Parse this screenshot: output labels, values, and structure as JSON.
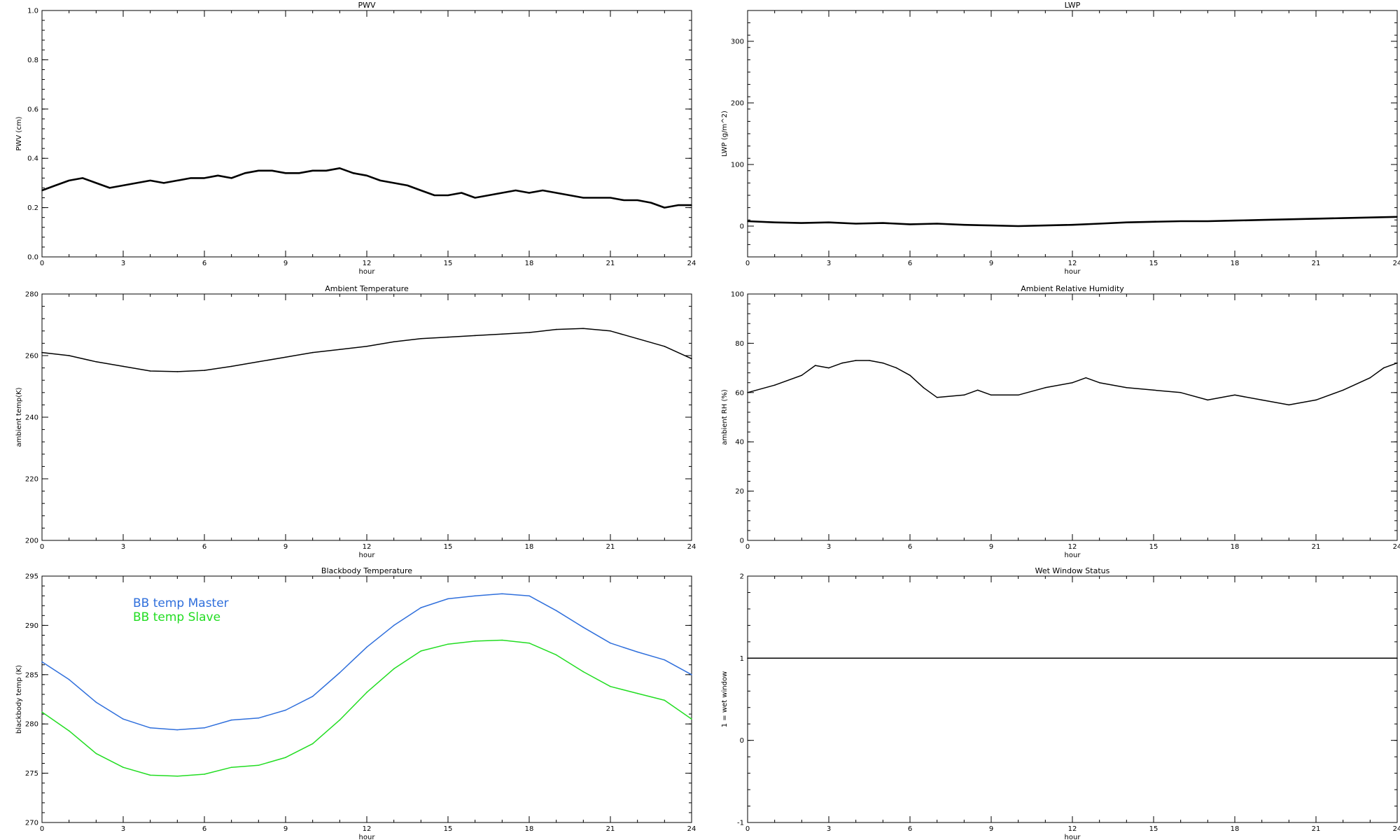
{
  "chart_data": [
    {
      "type": "line",
      "title": "PWV",
      "xlabel": "hour",
      "ylabel": "PWV (cm)",
      "xlim": [
        0,
        24
      ],
      "ylim": [
        0.0,
        1.0
      ],
      "xticks": [
        0,
        3,
        6,
        9,
        12,
        15,
        18,
        21,
        24
      ],
      "yticks": [
        0.0,
        0.2,
        0.4,
        0.6,
        0.8,
        1.0
      ],
      "ytick_labels": [
        "0.0",
        "0.2",
        "0.4",
        "0.6",
        "0.8",
        "1.0"
      ],
      "series": [
        {
          "color": "#000000",
          "points": [
            [
              0,
              0.27
            ],
            [
              0.5,
              0.29
            ],
            [
              1,
              0.31
            ],
            [
              1.5,
              0.32
            ],
            [
              2,
              0.3
            ],
            [
              2.5,
              0.28
            ],
            [
              3,
              0.29
            ],
            [
              3.5,
              0.3
            ],
            [
              4,
              0.31
            ],
            [
              4.5,
              0.3
            ],
            [
              5,
              0.31
            ],
            [
              5.5,
              0.32
            ],
            [
              6,
              0.32
            ],
            [
              6.5,
              0.33
            ],
            [
              7,
              0.32
            ],
            [
              7.5,
              0.34
            ],
            [
              8,
              0.35
            ],
            [
              8.5,
              0.35
            ],
            [
              9,
              0.34
            ],
            [
              9.5,
              0.34
            ],
            [
              10,
              0.35
            ],
            [
              10.5,
              0.35
            ],
            [
              11,
              0.36
            ],
            [
              11.5,
              0.34
            ],
            [
              12,
              0.33
            ],
            [
              12.5,
              0.31
            ],
            [
              13,
              0.3
            ],
            [
              13.5,
              0.29
            ],
            [
              14,
              0.27
            ],
            [
              14.5,
              0.25
            ],
            [
              15,
              0.25
            ],
            [
              15.5,
              0.26
            ],
            [
              16,
              0.24
            ],
            [
              16.5,
              0.25
            ],
            [
              17,
              0.26
            ],
            [
              17.5,
              0.27
            ],
            [
              18,
              0.26
            ],
            [
              18.5,
              0.27
            ],
            [
              19,
              0.26
            ],
            [
              19.5,
              0.25
            ],
            [
              20,
              0.24
            ],
            [
              20.5,
              0.24
            ],
            [
              21,
              0.24
            ],
            [
              21.5,
              0.23
            ],
            [
              22,
              0.23
            ],
            [
              22.5,
              0.22
            ],
            [
              23,
              0.2
            ],
            [
              23.5,
              0.21
            ],
            [
              24,
              0.21
            ]
          ]
        }
      ]
    },
    {
      "type": "line",
      "title": "LWP",
      "xlabel": "hour",
      "ylabel": "LWP (g/m^2)",
      "xlim": [
        0,
        24
      ],
      "ylim": [
        -50,
        350
      ],
      "xticks": [
        0,
        3,
        6,
        9,
        12,
        15,
        18,
        21,
        24
      ],
      "yticks": [
        0,
        100,
        200,
        300
      ],
      "ytick_labels": [
        "0",
        "100",
        "200",
        "300"
      ],
      "series": [
        {
          "color": "#000000",
          "points": [
            [
              0,
              8
            ],
            [
              1,
              6
            ],
            [
              2,
              5
            ],
            [
              3,
              6
            ],
            [
              4,
              4
            ],
            [
              5,
              5
            ],
            [
              6,
              3
            ],
            [
              7,
              4
            ],
            [
              8,
              2
            ],
            [
              9,
              1
            ],
            [
              10,
              0
            ],
            [
              11,
              1
            ],
            [
              12,
              2
            ],
            [
              13,
              4
            ],
            [
              14,
              6
            ],
            [
              15,
              7
            ],
            [
              16,
              8
            ],
            [
              17,
              8
            ],
            [
              18,
              9
            ],
            [
              19,
              10
            ],
            [
              20,
              11
            ],
            [
              21,
              12
            ],
            [
              22,
              13
            ],
            [
              23,
              14
            ],
            [
              24,
              15
            ]
          ]
        }
      ]
    },
    {
      "type": "line",
      "title": "Ambient Temperature",
      "xlabel": "hour",
      "ylabel": "ambient temp(K)",
      "xlim": [
        0,
        24
      ],
      "ylim": [
        200,
        280
      ],
      "xticks": [
        0,
        3,
        6,
        9,
        12,
        15,
        18,
        21,
        24
      ],
      "yticks": [
        200,
        220,
        240,
        260,
        280
      ],
      "ytick_labels": [
        "200",
        "220",
        "240",
        "260",
        "280"
      ],
      "series": [
        {
          "color": "#000000",
          "points": [
            [
              0,
              261
            ],
            [
              1,
              260
            ],
            [
              2,
              258
            ],
            [
              3,
              256.5
            ],
            [
              4,
              255
            ],
            [
              5,
              254.8
            ],
            [
              6,
              255.2
            ],
            [
              7,
              256.5
            ],
            [
              8,
              258
            ],
            [
              9,
              259.5
            ],
            [
              10,
              261
            ],
            [
              11,
              262
            ],
            [
              12,
              263
            ],
            [
              13,
              264.5
            ],
            [
              14,
              265.5
            ],
            [
              15,
              266
            ],
            [
              16,
              266.5
            ],
            [
              17,
              267
            ],
            [
              18,
              267.5
            ],
            [
              19,
              268.5
            ],
            [
              20,
              268.8
            ],
            [
              21,
              268
            ],
            [
              22,
              265.5
            ],
            [
              23,
              263
            ],
            [
              24,
              259
            ]
          ]
        }
      ]
    },
    {
      "type": "line",
      "title": "Ambient Relative Humidity",
      "xlabel": "hour",
      "ylabel": "ambient RH (%)",
      "xlim": [
        0,
        24
      ],
      "ylim": [
        0,
        100
      ],
      "xticks": [
        0,
        3,
        6,
        9,
        12,
        15,
        18,
        21,
        24
      ],
      "yticks": [
        0,
        20,
        40,
        60,
        80,
        100
      ],
      "ytick_labels": [
        "0",
        "20",
        "40",
        "60",
        "80",
        "100"
      ],
      "series": [
        {
          "color": "#000000",
          "points": [
            [
              0,
              60
            ],
            [
              1,
              63
            ],
            [
              2,
              67
            ],
            [
              2.5,
              71
            ],
            [
              3,
              70
            ],
            [
              3.5,
              72
            ],
            [
              4,
              73
            ],
            [
              4.5,
              73
            ],
            [
              5,
              72
            ],
            [
              5.5,
              70
            ],
            [
              6,
              67
            ],
            [
              6.5,
              62
            ],
            [
              7,
              58
            ],
            [
              8,
              59
            ],
            [
              8.5,
              61
            ],
            [
              9,
              59
            ],
            [
              10,
              59
            ],
            [
              11,
              62
            ],
            [
              12,
              64
            ],
            [
              12.5,
              66
            ],
            [
              13,
              64
            ],
            [
              14,
              62
            ],
            [
              15,
              61
            ],
            [
              16,
              60
            ],
            [
              17,
              57
            ],
            [
              18,
              59
            ],
            [
              19,
              57
            ],
            [
              20,
              55
            ],
            [
              21,
              57
            ],
            [
              22,
              61
            ],
            [
              23,
              66
            ],
            [
              23.5,
              70
            ],
            [
              24,
              72
            ]
          ]
        }
      ]
    },
    {
      "type": "line",
      "title": "Blackbody Temperature",
      "xlabel": "hour",
      "ylabel": "blackbody temp (K)",
      "xlim": [
        0,
        24
      ],
      "ylim": [
        270,
        295
      ],
      "xticks": [
        0,
        3,
        6,
        9,
        12,
        15,
        18,
        21,
        24
      ],
      "yticks": [
        270,
        275,
        280,
        285,
        290,
        295
      ],
      "ytick_labels": [
        "270",
        "275",
        "280",
        "285",
        "290",
        "295"
      ],
      "legend_labels": [
        "BB temp Master",
        "BB temp Slave"
      ],
      "legend_colors": [
        "#2f6fdc",
        "#22dd22"
      ],
      "series": [
        {
          "color": "#2f6fdc",
          "points": [
            [
              0,
              286.3
            ],
            [
              1,
              284.5
            ],
            [
              2,
              282.2
            ],
            [
              3,
              280.5
            ],
            [
              4,
              279.6
            ],
            [
              5,
              279.4
            ],
            [
              6,
              279.6
            ],
            [
              7,
              280.4
            ],
            [
              8,
              280.6
            ],
            [
              9,
              281.4
            ],
            [
              10,
              282.8
            ],
            [
              11,
              285.2
            ],
            [
              12,
              287.8
            ],
            [
              13,
              290
            ],
            [
              14,
              291.8
            ],
            [
              15,
              292.7
            ],
            [
              16,
              293
            ],
            [
              17,
              293.2
            ],
            [
              18,
              293
            ],
            [
              19,
              291.5
            ],
            [
              20,
              289.8
            ],
            [
              21,
              288.2
            ],
            [
              22,
              287.3
            ],
            [
              23,
              286.5
            ],
            [
              24,
              285
            ]
          ]
        },
        {
          "color": "#22dd22",
          "points": [
            [
              0,
              281.2
            ],
            [
              1,
              279.3
            ],
            [
              2,
              277
            ],
            [
              3,
              275.6
            ],
            [
              4,
              274.8
            ],
            [
              5,
              274.7
            ],
            [
              6,
              274.9
            ],
            [
              7,
              275.6
            ],
            [
              8,
              275.8
            ],
            [
              9,
              276.6
            ],
            [
              10,
              278
            ],
            [
              11,
              280.4
            ],
            [
              12,
              283.2
            ],
            [
              13,
              285.6
            ],
            [
              14,
              287.4
            ],
            [
              15,
              288.1
            ],
            [
              16,
              288.4
            ],
            [
              17,
              288.5
            ],
            [
              18,
              288.2
            ],
            [
              19,
              287
            ],
            [
              20,
              285.3
            ],
            [
              21,
              283.8
            ],
            [
              22,
              283.1
            ],
            [
              23,
              282.4
            ],
            [
              24,
              280.5
            ]
          ]
        }
      ]
    },
    {
      "type": "line",
      "title": "Wet Window Status",
      "xlabel": "hour",
      "ylabel": "1 = wet window",
      "xlim": [
        0,
        24
      ],
      "ylim": [
        -1,
        2
      ],
      "xticks": [
        0,
        3,
        6,
        9,
        12,
        15,
        18,
        21,
        24
      ],
      "yticks": [
        -1,
        0,
        1,
        2
      ],
      "ytick_labels": [
        "-1",
        "0",
        "1",
        "2"
      ],
      "series": [
        {
          "color": "#000000",
          "points": [
            [
              0,
              1
            ],
            [
              24,
              1
            ]
          ]
        }
      ]
    }
  ]
}
